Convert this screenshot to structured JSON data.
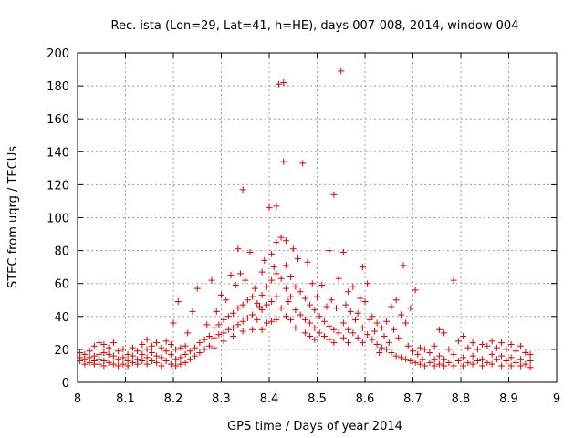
{
  "chart_data": {
    "type": "scatter",
    "title": "Rec. ista (Lon=29, Lat=41, h=HE), days 007-008, 2014, window 004",
    "xlabel": "GPS time / Days of year 2014",
    "ylabel": "STEC from uqrg / TECUs",
    "xlim": [
      8,
      9
    ],
    "ylim": [
      0,
      200
    ],
    "xticks": [
      "8",
      "8.1",
      "8.2",
      "8.3",
      "8.4",
      "8.5",
      "8.6",
      "8.7",
      "8.8",
      "8.9",
      "9"
    ],
    "yticks": [
      "0",
      "20",
      "40",
      "60",
      "80",
      "100",
      "120",
      "140",
      "160",
      "180",
      "200"
    ],
    "grid": true,
    "marker": "+",
    "color": "#e00000",
    "series": [
      {
        "name": "STEC",
        "points": [
          [
            8.005,
            18
          ],
          [
            8.005,
            15
          ],
          [
            8.005,
            13
          ],
          [
            8.015,
            17
          ],
          [
            8.015,
            14
          ],
          [
            8.015,
            11
          ],
          [
            8.025,
            19
          ],
          [
            8.025,
            15
          ],
          [
            8.025,
            12
          ],
          [
            8.035,
            22
          ],
          [
            8.035,
            16
          ],
          [
            8.035,
            13
          ],
          [
            8.035,
            11
          ],
          [
            8.045,
            24
          ],
          [
            8.045,
            17
          ],
          [
            8.045,
            14
          ],
          [
            8.045,
            11
          ],
          [
            8.055,
            23
          ],
          [
            8.055,
            18
          ],
          [
            8.055,
            13
          ],
          [
            8.055,
            10
          ],
          [
            8.065,
            21
          ],
          [
            8.065,
            17
          ],
          [
            8.065,
            12
          ],
          [
            8.075,
            24
          ],
          [
            8.075,
            16
          ],
          [
            8.075,
            11
          ],
          [
            8.085,
            19
          ],
          [
            8.085,
            14
          ],
          [
            8.085,
            10
          ],
          [
            8.095,
            20
          ],
          [
            8.095,
            15
          ],
          [
            8.095,
            11
          ],
          [
            8.105,
            17
          ],
          [
            8.105,
            13
          ],
          [
            8.105,
            10
          ],
          [
            8.115,
            21
          ],
          [
            8.115,
            16
          ],
          [
            8.115,
            12
          ],
          [
            8.125,
            19
          ],
          [
            8.125,
            14
          ],
          [
            8.125,
            11
          ],
          [
            8.135,
            23
          ],
          [
            8.135,
            17
          ],
          [
            8.135,
            13
          ],
          [
            8.145,
            26
          ],
          [
            8.145,
            20
          ],
          [
            8.145,
            15
          ],
          [
            8.145,
            11
          ],
          [
            8.155,
            22
          ],
          [
            8.155,
            18
          ],
          [
            8.155,
            13
          ],
          [
            8.165,
            24
          ],
          [
            8.165,
            16
          ],
          [
            8.165,
            12
          ],
          [
            8.175,
            21
          ],
          [
            8.175,
            15
          ],
          [
            8.175,
            10
          ],
          [
            8.185,
            25
          ],
          [
            8.185,
            19
          ],
          [
            8.185,
            13
          ],
          [
            8.195,
            23
          ],
          [
            8.195,
            17
          ],
          [
            8.195,
            11
          ],
          [
            8.2,
            36
          ],
          [
            8.205,
            20
          ],
          [
            8.205,
            14
          ],
          [
            8.205,
            10
          ],
          [
            8.21,
            49
          ],
          [
            8.215,
            21
          ],
          [
            8.215,
            15
          ],
          [
            8.215,
            11
          ],
          [
            8.225,
            22
          ],
          [
            8.225,
            17
          ],
          [
            8.225,
            12
          ],
          [
            8.23,
            30
          ],
          [
            8.235,
            19
          ],
          [
            8.235,
            14
          ],
          [
            8.24,
            43
          ],
          [
            8.245,
            21
          ],
          [
            8.245,
            16
          ],
          [
            8.25,
            57
          ],
          [
            8.255,
            24
          ],
          [
            8.255,
            18
          ],
          [
            8.265,
            26
          ],
          [
            8.265,
            20
          ],
          [
            8.27,
            35
          ],
          [
            8.275,
            28
          ],
          [
            8.275,
            22
          ],
          [
            8.28,
            62
          ],
          [
            8.285,
            33
          ],
          [
            8.285,
            27
          ],
          [
            8.285,
            21
          ],
          [
            8.29,
            43
          ],
          [
            8.295,
            35
          ],
          [
            8.295,
            29
          ],
          [
            8.3,
            53
          ],
          [
            8.305,
            38
          ],
          [
            8.305,
            30
          ],
          [
            8.305,
            25
          ],
          [
            8.31,
            50
          ],
          [
            8.315,
            40
          ],
          [
            8.315,
            32
          ],
          [
            8.32,
            65
          ],
          [
            8.325,
            42
          ],
          [
            8.325,
            33
          ],
          [
            8.325,
            28
          ],
          [
            8.33,
            59
          ],
          [
            8.335,
            81
          ],
          [
            8.335,
            45
          ],
          [
            8.335,
            35
          ],
          [
            8.34,
            66
          ],
          [
            8.345,
            117
          ],
          [
            8.345,
            47
          ],
          [
            8.345,
            37
          ],
          [
            8.345,
            31
          ],
          [
            8.35,
            62
          ],
          [
            8.355,
            50
          ],
          [
            8.355,
            39
          ],
          [
            8.36,
            79
          ],
          [
            8.365,
            52
          ],
          [
            8.365,
            41
          ],
          [
            8.365,
            32
          ],
          [
            8.37,
            57
          ],
          [
            8.375,
            48
          ],
          [
            8.375,
            38
          ],
          [
            8.38,
            46
          ],
          [
            8.385,
            67
          ],
          [
            8.385,
            53
          ],
          [
            8.385,
            44
          ],
          [
            8.385,
            32
          ],
          [
            8.39,
            74
          ],
          [
            8.395,
            58
          ],
          [
            8.395,
            47
          ],
          [
            8.395,
            36
          ],
          [
            8.4,
            106
          ],
          [
            8.405,
            78
          ],
          [
            8.405,
            62
          ],
          [
            8.405,
            49
          ],
          [
            8.405,
            37
          ],
          [
            8.41,
            70
          ],
          [
            8.415,
            107
          ],
          [
            8.415,
            85
          ],
          [
            8.415,
            66
          ],
          [
            8.415,
            52
          ],
          [
            8.415,
            38
          ],
          [
            8.42,
            181
          ],
          [
            8.425,
            88
          ],
          [
            8.425,
            63
          ],
          [
            8.425,
            45
          ],
          [
            8.43,
            182
          ],
          [
            8.43,
            134
          ],
          [
            8.435,
            86
          ],
          [
            8.435,
            71
          ],
          [
            8.435,
            57
          ],
          [
            8.435,
            40
          ],
          [
            8.44,
            49
          ],
          [
            8.445,
            64
          ],
          [
            8.445,
            52
          ],
          [
            8.445,
            38
          ],
          [
            8.45,
            81
          ],
          [
            8.455,
            58
          ],
          [
            8.455,
            44
          ],
          [
            8.455,
            33
          ],
          [
            8.46,
            75
          ],
          [
            8.465,
            55
          ],
          [
            8.465,
            41
          ],
          [
            8.47,
            133
          ],
          [
            8.475,
            51
          ],
          [
            8.475,
            38
          ],
          [
            8.475,
            30
          ],
          [
            8.48,
            73
          ],
          [
            8.485,
            47
          ],
          [
            8.485,
            36
          ],
          [
            8.485,
            28
          ],
          [
            8.49,
            60
          ],
          [
            8.495,
            44
          ],
          [
            8.495,
            33
          ],
          [
            8.495,
            26
          ],
          [
            8.5,
            52
          ],
          [
            8.505,
            40
          ],
          [
            8.505,
            30
          ],
          [
            8.51,
            59
          ],
          [
            8.515,
            37
          ],
          [
            8.515,
            28
          ],
          [
            8.52,
            46
          ],
          [
            8.525,
            80
          ],
          [
            8.525,
            34
          ],
          [
            8.525,
            26
          ],
          [
            8.53,
            50
          ],
          [
            8.535,
            114
          ],
          [
            8.535,
            32
          ],
          [
            8.535,
            24
          ],
          [
            8.54,
            45
          ],
          [
            8.545,
            63
          ],
          [
            8.545,
            30
          ],
          [
            8.55,
            189
          ],
          [
            8.555,
            79
          ],
          [
            8.555,
            36
          ],
          [
            8.555,
            27
          ],
          [
            8.56,
            47
          ],
          [
            8.565,
            55
          ],
          [
            8.565,
            32
          ],
          [
            8.565,
            24
          ],
          [
            8.57,
            43
          ],
          [
            8.575,
            58
          ],
          [
            8.575,
            30
          ],
          [
            8.58,
            38
          ],
          [
            8.585,
            42
          ],
          [
            8.585,
            27
          ],
          [
            8.59,
            51
          ],
          [
            8.595,
            70
          ],
          [
            8.595,
            33
          ],
          [
            8.595,
            24
          ],
          [
            8.6,
            49
          ],
          [
            8.605,
            60
          ],
          [
            8.605,
            29
          ],
          [
            8.61,
            38
          ],
          [
            8.615,
            40
          ],
          [
            8.615,
            26
          ],
          [
            8.62,
            31
          ],
          [
            8.625,
            36
          ],
          [
            8.625,
            23
          ],
          [
            8.63,
            18
          ],
          [
            8.635,
            33
          ],
          [
            8.635,
            21
          ],
          [
            8.64,
            28
          ],
          [
            8.645,
            37
          ],
          [
            8.645,
            20
          ],
          [
            8.65,
            24
          ],
          [
            8.655,
            46
          ],
          [
            8.655,
            18
          ],
          [
            8.66,
            32
          ],
          [
            8.665,
            50
          ],
          [
            8.665,
            16
          ],
          [
            8.67,
            27
          ],
          [
            8.675,
            41
          ],
          [
            8.675,
            15
          ],
          [
            8.68,
            71
          ],
          [
            8.685,
            36
          ],
          [
            8.685,
            14
          ],
          [
            8.69,
            22
          ],
          [
            8.695,
            45
          ],
          [
            8.695,
            13
          ],
          [
            8.7,
            19
          ],
          [
            8.705,
            56
          ],
          [
            8.705,
            12
          ],
          [
            8.71,
            17
          ],
          [
            8.715,
            21
          ],
          [
            8.715,
            11
          ],
          [
            8.72,
            14
          ],
          [
            8.725,
            20
          ],
          [
            8.725,
            10
          ],
          [
            8.735,
            18
          ],
          [
            8.735,
            12
          ],
          [
            8.745,
            22
          ],
          [
            8.745,
            14
          ],
          [
            8.745,
            10
          ],
          [
            8.755,
            32
          ],
          [
            8.755,
            16
          ],
          [
            8.755,
            11
          ],
          [
            8.765,
            30
          ],
          [
            8.765,
            14
          ],
          [
            8.765,
            10
          ],
          [
            8.775,
            20
          ],
          [
            8.775,
            12
          ],
          [
            8.785,
            62
          ],
          [
            8.785,
            17
          ],
          [
            8.785,
            10
          ],
          [
            8.795,
            25
          ],
          [
            8.795,
            13
          ],
          [
            8.805,
            28
          ],
          [
            8.805,
            15
          ],
          [
            8.805,
            10
          ],
          [
            8.815,
            21
          ],
          [
            8.815,
            12
          ],
          [
            8.825,
            24
          ],
          [
            8.825,
            16
          ],
          [
            8.825,
            11
          ],
          [
            8.835,
            20
          ],
          [
            8.835,
            13
          ],
          [
            8.845,
            23
          ],
          [
            8.845,
            14
          ],
          [
            8.845,
            10
          ],
          [
            8.855,
            22
          ],
          [
            8.855,
            12
          ],
          [
            8.865,
            25
          ],
          [
            8.865,
            17
          ],
          [
            8.865,
            11
          ],
          [
            8.875,
            21
          ],
          [
            8.875,
            14
          ],
          [
            8.885,
            24
          ],
          [
            8.885,
            16
          ],
          [
            8.885,
            10
          ],
          [
            8.895,
            20
          ],
          [
            8.895,
            13
          ],
          [
            8.905,
            23
          ],
          [
            8.905,
            15
          ],
          [
            8.905,
            10
          ],
          [
            8.915,
            19
          ],
          [
            8.915,
            12
          ],
          [
            8.925,
            22
          ],
          [
            8.925,
            14
          ],
          [
            8.925,
            10
          ],
          [
            8.935,
            18
          ],
          [
            8.935,
            11
          ],
          [
            8.945,
            17
          ],
          [
            8.945,
            13
          ],
          [
            8.945,
            9
          ]
        ]
      }
    ]
  }
}
